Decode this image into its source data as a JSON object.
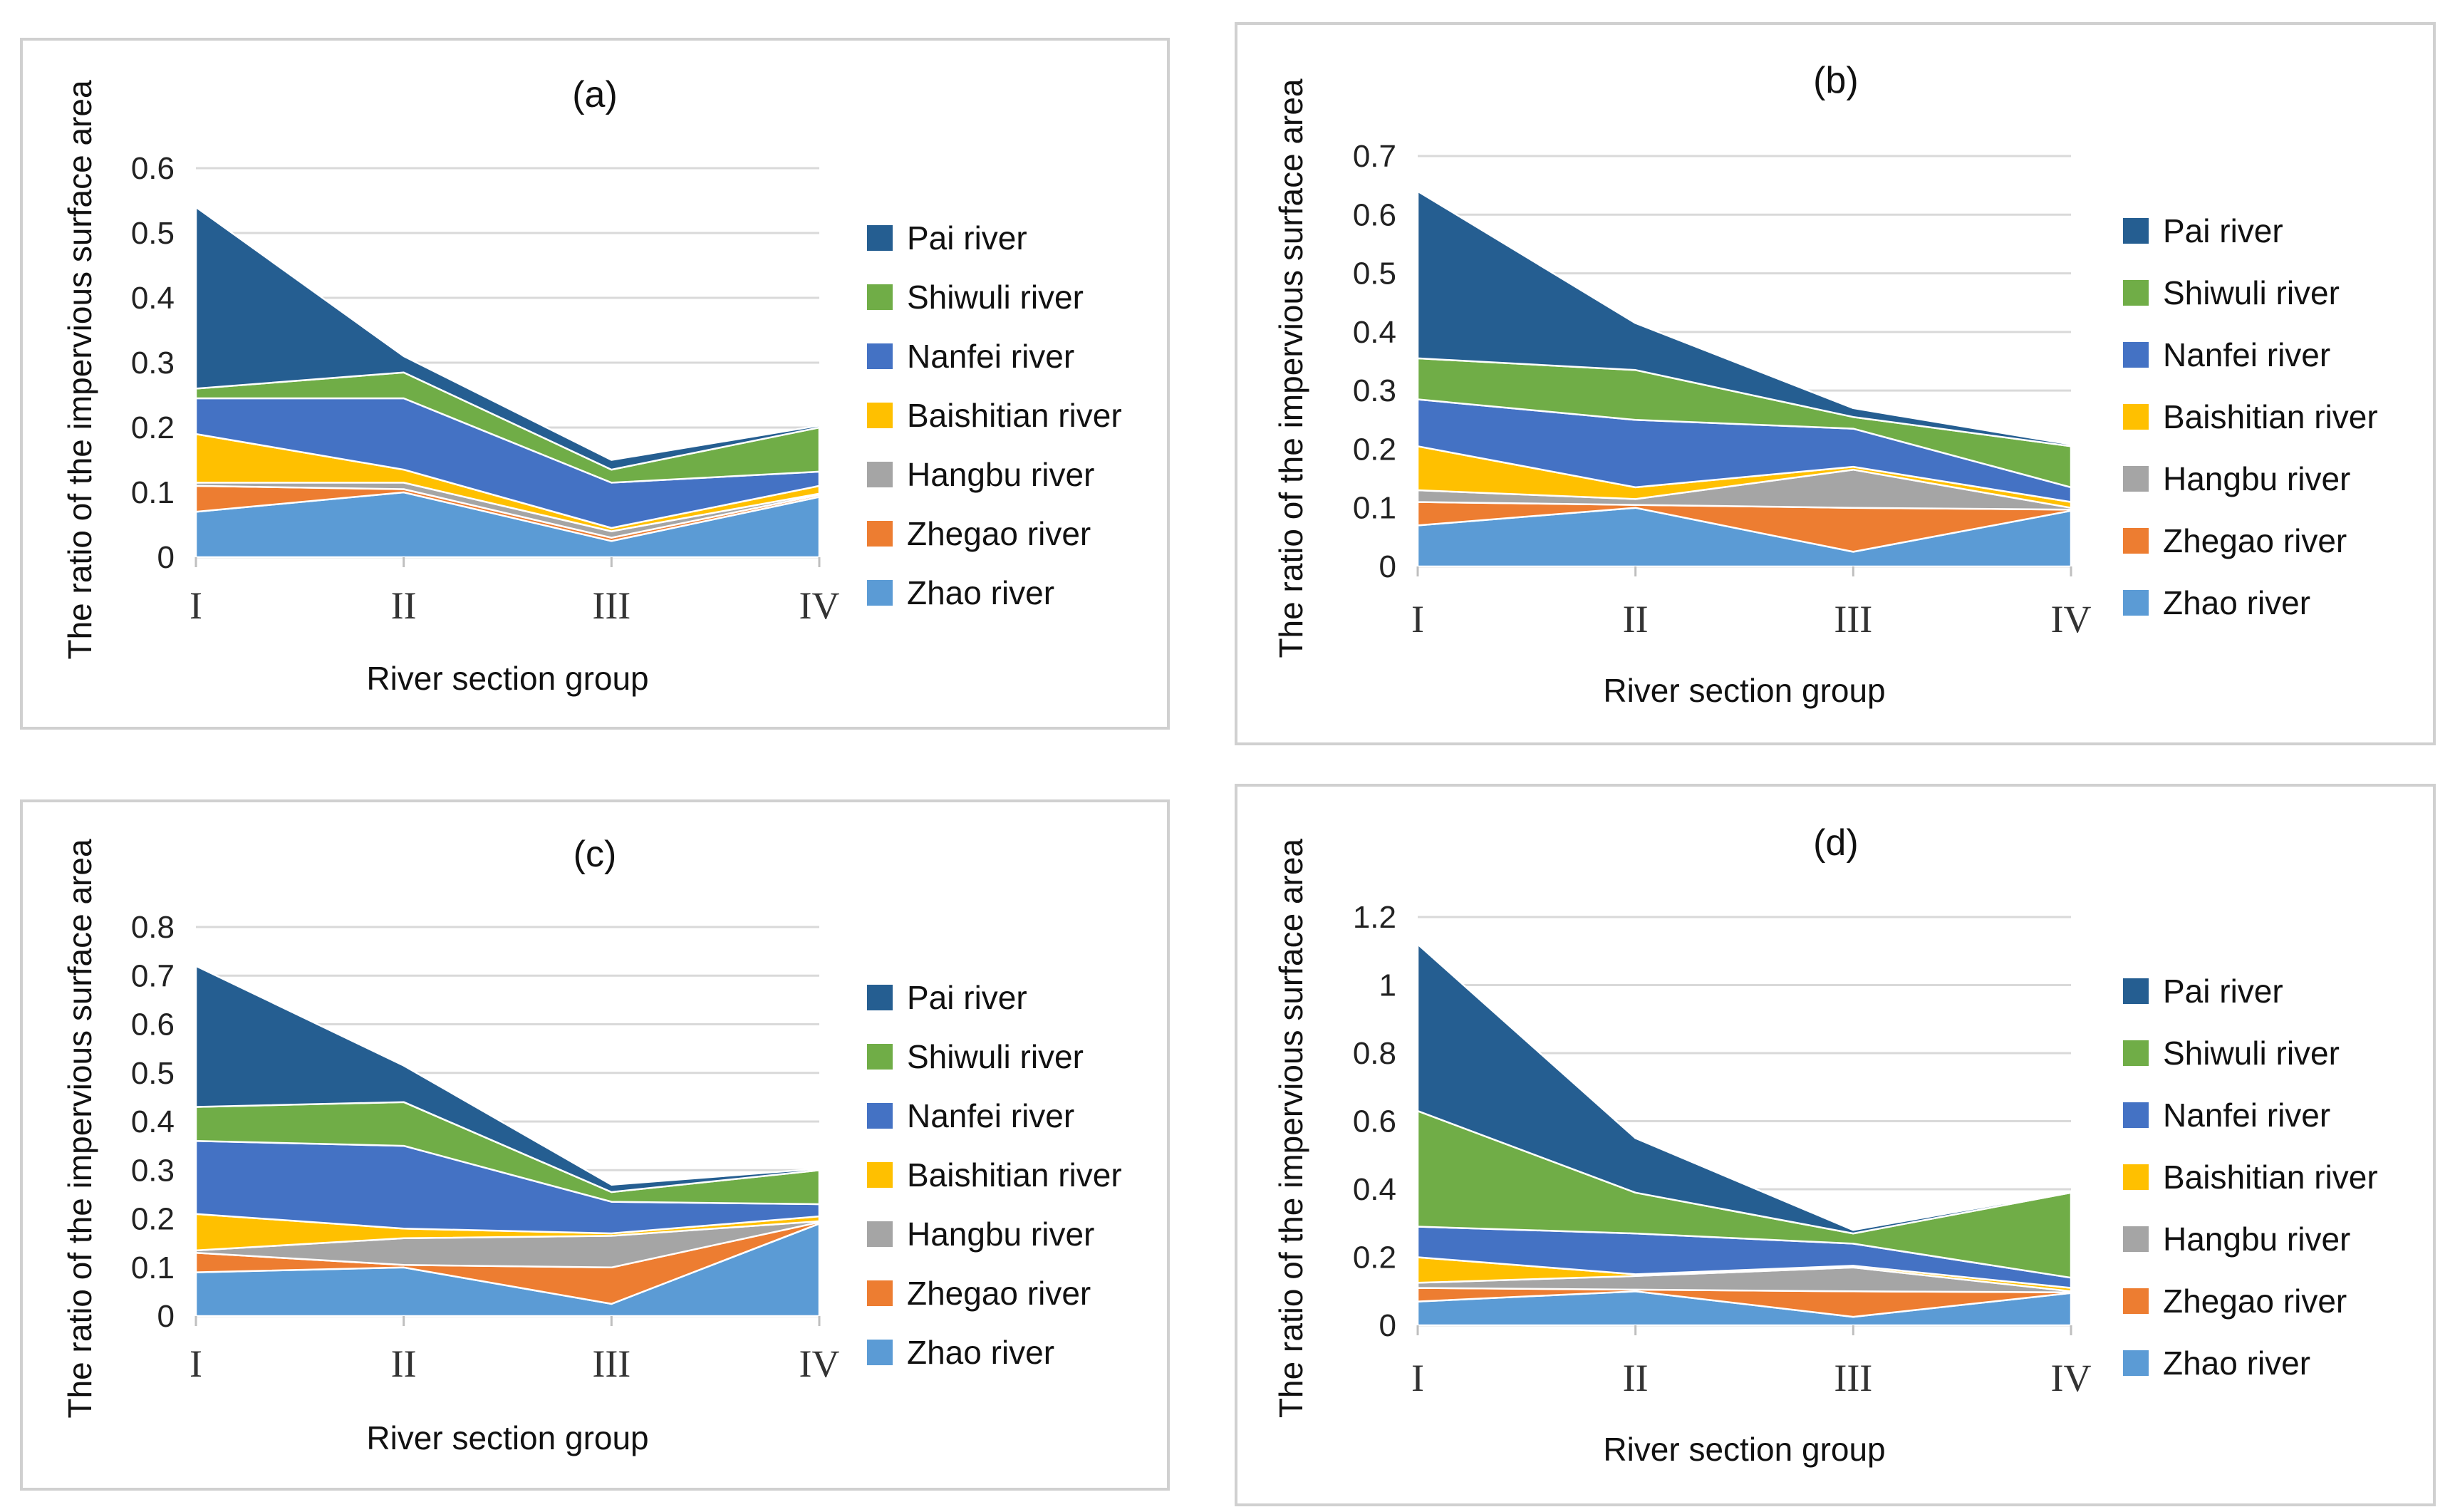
{
  "chart_data": [
    {
      "type": "area",
      "stacked": true,
      "title": "(a)",
      "xlabel": "River section group",
      "ylabel": "The ratio of the impervious surface area",
      "categories": [
        "I",
        "II",
        "III",
        "IV"
      ],
      "yticks": [
        "0",
        "0.1",
        "0.2",
        "0.3",
        "0.4",
        "0.5",
        "0.6"
      ],
      "ylim": [
        0,
        0.6
      ],
      "legend_position": "right",
      "series": [
        {
          "name": "Zhao river",
          "color": "#5B9BD5",
          "values": [
            0.07,
            0.1,
            0.025,
            0.093
          ]
        },
        {
          "name": "Zhegao river",
          "color": "#ED7D31",
          "values": [
            0.04,
            0.005,
            0.005,
            0.003
          ]
        },
        {
          "name": "Hangbu river",
          "color": "#A5A5A5",
          "values": [
            0.005,
            0.01,
            0.01,
            0.002
          ]
        },
        {
          "name": "Baishitian river",
          "color": "#FFC000",
          "values": [
            0.075,
            0.02,
            0.005,
            0.012
          ]
        },
        {
          "name": "Nanfei river",
          "color": "#4472C4",
          "values": [
            0.055,
            0.11,
            0.07,
            0.022
          ]
        },
        {
          "name": "Shiwuli river",
          "color": "#70AD47",
          "values": [
            0.015,
            0.04,
            0.02,
            0.068
          ]
        },
        {
          "name": "Pai river",
          "color": "#255E91",
          "values": [
            0.28,
            0.025,
            0.015,
            0.003
          ]
        }
      ]
    },
    {
      "type": "area",
      "stacked": true,
      "title": "(b)",
      "xlabel": "River section group",
      "ylabel": "The ratio of the impervious surface area",
      "categories": [
        "I",
        "II",
        "III",
        "IV"
      ],
      "yticks": [
        "0",
        "0.1",
        "0.2",
        "0.3",
        "0.4",
        "0.5",
        "0.6",
        "0.7"
      ],
      "ylim": [
        0,
        0.7
      ],
      "legend_position": "right",
      "series": [
        {
          "name": "Zhao river",
          "color": "#5B9BD5",
          "values": [
            0.07,
            0.1,
            0.025,
            0.095
          ]
        },
        {
          "name": "Zhegao river",
          "color": "#ED7D31",
          "values": [
            0.04,
            0.005,
            0.075,
            0.002
          ]
        },
        {
          "name": "Hangbu river",
          "color": "#A5A5A5",
          "values": [
            0.02,
            0.01,
            0.065,
            0.003
          ]
        },
        {
          "name": "Baishitian river",
          "color": "#FFC000",
          "values": [
            0.075,
            0.02,
            0.005,
            0.01
          ]
        },
        {
          "name": "Nanfei river",
          "color": "#4472C4",
          "values": [
            0.08,
            0.115,
            0.065,
            0.025
          ]
        },
        {
          "name": "Shiwuli river",
          "color": "#70AD47",
          "values": [
            0.07,
            0.085,
            0.02,
            0.07
          ]
        },
        {
          "name": "Pai river",
          "color": "#255E91",
          "values": [
            0.285,
            0.08,
            0.015,
            0.003
          ]
        }
      ]
    },
    {
      "type": "area",
      "stacked": true,
      "title": "(c)",
      "xlabel": "River section group",
      "ylabel": "The ratio of the impervious surface area",
      "categories": [
        "I",
        "II",
        "III",
        "IV"
      ],
      "yticks": [
        "0",
        "0.1",
        "0.2",
        "0.3",
        "0.4",
        "0.5",
        "0.6",
        "0.7",
        "0.8"
      ],
      "ylim": [
        0,
        0.8
      ],
      "legend_position": "right",
      "series": [
        {
          "name": "Zhao river",
          "color": "#5B9BD5",
          "values": [
            0.09,
            0.1,
            0.025,
            0.19
          ]
        },
        {
          "name": "Zhegao river",
          "color": "#ED7D31",
          "values": [
            0.04,
            0.005,
            0.075,
            0.003
          ]
        },
        {
          "name": "Hangbu river",
          "color": "#A5A5A5",
          "values": [
            0.005,
            0.055,
            0.065,
            0.002
          ]
        },
        {
          "name": "Baishitian river",
          "color": "#FFC000",
          "values": [
            0.075,
            0.02,
            0.005,
            0.01
          ]
        },
        {
          "name": "Nanfei river",
          "color": "#4472C4",
          "values": [
            0.15,
            0.17,
            0.065,
            0.025
          ]
        },
        {
          "name": "Shiwuli river",
          "color": "#70AD47",
          "values": [
            0.07,
            0.09,
            0.02,
            0.07
          ]
        },
        {
          "name": "Pai river",
          "color": "#255E91",
          "values": [
            0.29,
            0.075,
            0.015,
            0.003
          ]
        }
      ]
    },
    {
      "type": "area",
      "stacked": true,
      "title": "(d)",
      "xlabel": "River section group",
      "ylabel": "The ratio of the impervious surface area",
      "categories": [
        "I",
        "II",
        "III",
        "IV"
      ],
      "yticks": [
        "0",
        "0.2",
        "0.4",
        "0.6",
        "0.8",
        "1",
        "1.2"
      ],
      "ylim": [
        0,
        1.2
      ],
      "legend_position": "right",
      "series": [
        {
          "name": "Zhao river",
          "color": "#5B9BD5",
          "values": [
            0.07,
            0.1,
            0.025,
            0.095
          ]
        },
        {
          "name": "Zhegao river",
          "color": "#ED7D31",
          "values": [
            0.04,
            0.005,
            0.075,
            0.002
          ]
        },
        {
          "name": "Hangbu river",
          "color": "#A5A5A5",
          "values": [
            0.015,
            0.04,
            0.07,
            0.003
          ]
        },
        {
          "name": "Baishitian river",
          "color": "#FFC000",
          "values": [
            0.075,
            0.005,
            0.005,
            0.01
          ]
        },
        {
          "name": "Nanfei river",
          "color": "#4472C4",
          "values": [
            0.09,
            0.12,
            0.065,
            0.03
          ]
        },
        {
          "name": "Shiwuli river",
          "color": "#70AD47",
          "values": [
            0.34,
            0.12,
            0.03,
            0.25
          ]
        },
        {
          "name": "Pai river",
          "color": "#255E91",
          "values": [
            0.49,
            0.16,
            0.01,
            0.003
          ]
        }
      ]
    }
  ]
}
